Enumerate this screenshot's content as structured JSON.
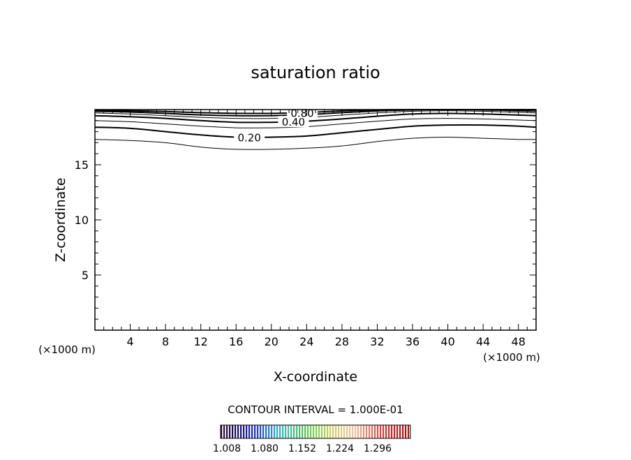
{
  "chart_data": {
    "type": "contour",
    "title": "saturation ratio",
    "xlabel": "X-coordinate",
    "ylabel": "Z-coordinate",
    "x_unit_left": "(×1000 m)",
    "x_unit_right": "(×1000 m)",
    "xlim": [
      0,
      50
    ],
    "ylim": [
      0,
      20
    ],
    "xticks": [
      4,
      8,
      12,
      16,
      20,
      24,
      28,
      32,
      36,
      40,
      44,
      48
    ],
    "yticks": [
      5,
      10,
      15
    ],
    "contour_interval_text": "CONTOUR INTERVAL = 1.000E-01",
    "contours": [
      {
        "level": 0.1,
        "label": "",
        "points": [
          [
            0,
            17.3
          ],
          [
            4,
            17.2
          ],
          [
            8,
            17.0
          ],
          [
            12,
            16.6
          ],
          [
            16,
            16.4
          ],
          [
            20,
            16.4
          ],
          [
            24,
            16.5
          ],
          [
            28,
            16.7
          ],
          [
            32,
            17.1
          ],
          [
            36,
            17.4
          ],
          [
            40,
            17.5
          ],
          [
            44,
            17.4
          ],
          [
            48,
            17.3
          ],
          [
            50,
            17.3
          ]
        ]
      },
      {
        "level": 0.2,
        "label": "0.20",
        "label_x": 17.5,
        "points": [
          [
            0,
            18.4
          ],
          [
            4,
            18.3
          ],
          [
            8,
            18.0
          ],
          [
            12,
            17.7
          ],
          [
            16,
            17.5
          ],
          [
            20,
            17.5
          ],
          [
            24,
            17.6
          ],
          [
            28,
            17.9
          ],
          [
            32,
            18.2
          ],
          [
            36,
            18.5
          ],
          [
            40,
            18.6
          ],
          [
            44,
            18.6
          ],
          [
            48,
            18.5
          ],
          [
            50,
            18.4
          ]
        ]
      },
      {
        "level": 0.3,
        "label": "",
        "points": [
          [
            0,
            19.0
          ],
          [
            4,
            18.9
          ],
          [
            8,
            18.7
          ],
          [
            12,
            18.5
          ],
          [
            16,
            18.35
          ],
          [
            20,
            18.35
          ],
          [
            24,
            18.45
          ],
          [
            28,
            18.7
          ],
          [
            32,
            18.95
          ],
          [
            36,
            19.15
          ],
          [
            40,
            19.2
          ],
          [
            44,
            19.15
          ],
          [
            48,
            19.05
          ],
          [
            50,
            19.0
          ]
        ]
      },
      {
        "level": 0.4,
        "label": "0.40",
        "label_x": 22.5,
        "points": [
          [
            0,
            19.45
          ],
          [
            4,
            19.35
          ],
          [
            8,
            19.2
          ],
          [
            12,
            19.0
          ],
          [
            16,
            18.85
          ],
          [
            20,
            18.85
          ],
          [
            24,
            18.95
          ],
          [
            28,
            19.15
          ],
          [
            32,
            19.4
          ],
          [
            36,
            19.6
          ],
          [
            40,
            19.65
          ],
          [
            44,
            19.6
          ],
          [
            48,
            19.5
          ],
          [
            50,
            19.45
          ]
        ]
      },
      {
        "level": 0.5,
        "label": "",
        "points": [
          [
            0,
            19.7
          ],
          [
            4,
            19.6
          ],
          [
            8,
            19.45
          ],
          [
            12,
            19.3
          ],
          [
            16,
            19.2
          ],
          [
            20,
            19.2
          ],
          [
            24,
            19.3
          ],
          [
            28,
            19.5
          ],
          [
            32,
            19.7
          ],
          [
            36,
            19.85
          ],
          [
            40,
            19.9
          ],
          [
            44,
            19.85
          ],
          [
            48,
            19.75
          ],
          [
            50,
            19.7
          ]
        ]
      },
      {
        "level": 0.6,
        "label": "",
        "points": [
          [
            0,
            19.85
          ],
          [
            4,
            19.78
          ],
          [
            8,
            19.65
          ],
          [
            12,
            19.52
          ],
          [
            16,
            19.45
          ],
          [
            20,
            19.45
          ],
          [
            24,
            19.55
          ],
          [
            28,
            19.72
          ],
          [
            32,
            19.88
          ],
          [
            36,
            19.97
          ],
          [
            40,
            20.0
          ],
          [
            44,
            19.97
          ],
          [
            48,
            19.9
          ],
          [
            50,
            19.85
          ]
        ]
      },
      {
        "level": 0.8,
        "label": "0.80",
        "label_x": 23.5,
        "points": [
          [
            0,
            19.95
          ],
          [
            4,
            19.9
          ],
          [
            8,
            19.82
          ],
          [
            12,
            19.72
          ],
          [
            16,
            19.66
          ],
          [
            20,
            19.66
          ],
          [
            24,
            19.74
          ],
          [
            28,
            19.88
          ],
          [
            32,
            19.97
          ],
          [
            36,
            20.0
          ],
          [
            50,
            20.0
          ]
        ]
      }
    ],
    "colorbar": {
      "ticks": [
        "1.008",
        "1.080",
        "1.152",
        "1.224",
        "1.296"
      ],
      "colors": [
        "#2a0a2a",
        "#1a0a60",
        "#1a1aa0",
        "#2050c8",
        "#30a0d0",
        "#40c0a0",
        "#50c060",
        "#80d050",
        "#c0d060",
        "#e0d080",
        "#f0c0a0",
        "#e08070",
        "#d04040",
        "#c02020",
        "#b01010"
      ]
    }
  }
}
